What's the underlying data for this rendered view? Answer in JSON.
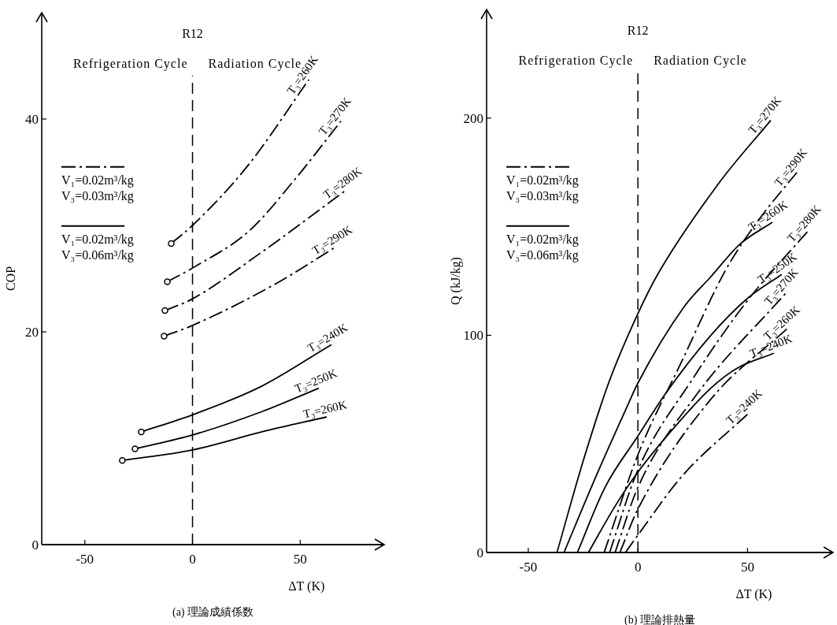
{
  "chart_data": [
    {
      "type": "line",
      "title": "R12",
      "subtitle": "(a) 理論成績係数",
      "xlabel": "ΔT (K)",
      "ylabel": "COP",
      "xlim": [
        -70,
        89
      ],
      "ylim": [
        0,
        50
      ],
      "xticks": [
        -50,
        0,
        50
      ],
      "yticks": [
        0,
        20,
        40
      ],
      "grid": false,
      "ref_lines": [
        {
          "axis": "x",
          "value": 0,
          "color": "#000000",
          "line_style": "dashed"
        }
      ],
      "annotations": [
        "Refrigeration Cycle",
        "Radiation Cycle",
        "V₁=0.02m³/kg\nV₃=0.03m³/kg",
        "V₁=0.02m³/kg\nV₃=0.06m³/kg"
      ],
      "series": [
        {
          "name": "T₃=260K",
          "color": "#000000",
          "line_style": "dashdot",
          "x": [
            -9.9,
            0,
            25.6,
            54
          ],
          "values": [
            28.3,
            30.0,
            35.6,
            43.7
          ]
        },
        {
          "name": "T₃=270K",
          "color": "#000000",
          "line_style": "dashdot",
          "x": [
            -11.7,
            0,
            26.4,
            47,
            68.9
          ],
          "values": [
            24.7,
            26.0,
            29.5,
            34.2,
            39.8
          ]
        },
        {
          "name": "T₃=280K",
          "color": "#000000",
          "line_style": "dashdot",
          "x": [
            -12.8,
            0,
            32.2,
            71.8
          ],
          "values": [
            22.0,
            23.1,
            27.5,
            33.4
          ]
        },
        {
          "name": "T₃=290K",
          "color": "#000000",
          "line_style": "dashdot",
          "x": [
            -13.2,
            0,
            38.5,
            66.7
          ],
          "values": [
            19.6,
            20.6,
            24.5,
            28.0
          ]
        },
        {
          "name": "T₃=240K",
          "color": "#000000",
          "line_style": "solid",
          "x": [
            -23.8,
            0,
            32.2,
            64.5
          ],
          "values": [
            10.6,
            12.2,
            14.9,
            18.8
          ]
        },
        {
          "name": "T₃=250K",
          "color": "#000000",
          "line_style": "solid",
          "x": [
            -26.7,
            0,
            32.2,
            58.6
          ],
          "values": [
            9.0,
            10.3,
            12.5,
            14.7
          ]
        },
        {
          "name": "T₃=260K",
          "color": "#000000",
          "line_style": "solid",
          "x": [
            -32.6,
            0,
            32.2,
            62.3
          ],
          "values": [
            7.9,
            8.9,
            10.6,
            12.0
          ]
        },
        {
          "type": "scatter",
          "color": "#000000",
          "marker": "circle",
          "x": [
            -9.9,
            -11.7,
            -12.8,
            -13.2,
            -23.8,
            -26.7,
            -32.6
          ],
          "values": [
            28.3,
            24.7,
            22.0,
            19.6,
            10.6,
            9.0,
            7.9
          ]
        }
      ]
    },
    {
      "type": "line",
      "title": "R12",
      "subtitle": "(b) 理論排熱量",
      "xlabel": "ΔT (K)",
      "ylabel": "Q (kJ/kg)",
      "xlim": [
        -69,
        89
      ],
      "ylim": [
        0,
        250
      ],
      "xticks": [
        -50,
        0,
        50
      ],
      "yticks": [
        0,
        100,
        200
      ],
      "grid": false,
      "ref_lines": [
        {
          "axis": "x",
          "value": 0,
          "color": "#000000",
          "line_style": "dashed"
        }
      ],
      "annotations": [
        "Refrigeration Cycle",
        "Radiation Cycle",
        "V₁=0.02m³/kg\nV₃=0.03m³/kg",
        "V₁=0.02m³/kg\nV₃=0.06m³/kg"
      ],
      "series": [
        {
          "name": "T₃=290K",
          "color": "#000000",
          "line_style": "dashdot",
          "x": [
            -15.4,
            0,
            20,
            40,
            55,
            72.5
          ],
          "values": [
            0,
            45,
            88,
            130,
            153,
            175
          ]
        },
        {
          "name": "T₃=270K",
          "color": "#000000",
          "line_style": "solid",
          "x": [
            -36.9,
            -25,
            -13,
            0,
            9,
            36.9,
            60.6
          ],
          "values": [
            0,
            42,
            79,
            110,
            128,
            170,
            199
          ]
        },
        {
          "name": "T₃=260K",
          "color": "#000000",
          "line_style": "solid",
          "x": [
            -33.7,
            -20,
            -5,
            0,
            21,
            33.3,
            46.6,
            61.3
          ],
          "values": [
            0,
            33,
            67,
            78,
            113,
            127,
            142,
            152
          ]
        },
        {
          "name": "T₃=280K",
          "color": "#000000",
          "line_style": "dashdot",
          "x": [
            -12.9,
            0,
            25,
            50,
            78.5
          ],
          "values": [
            0,
            38,
            80,
            116,
            149
          ]
        },
        {
          "name": "T₃=250K",
          "color": "#000000",
          "line_style": "solid",
          "x": [
            -27.6,
            -15,
            0,
            12.5,
            33.3,
            50,
            65.6
          ],
          "values": [
            0,
            30,
            53.6,
            73,
            100,
            117,
            128
          ]
        },
        {
          "name": "T₃=270K",
          "color": "#000000",
          "line_style": "dashdot",
          "x": [
            -10.4,
            0,
            27,
            68
          ],
          "values": [
            0,
            30,
            73,
            120
          ]
        },
        {
          "name": "T₃=260K",
          "color": "#000000",
          "line_style": "dashdot",
          "x": [
            -8.2,
            0,
            33.3,
            68
          ],
          "values": [
            0,
            20,
            70.6,
            103
          ]
        },
        {
          "name": "T₃=240K",
          "color": "#000000",
          "line_style": "solid",
          "x": [
            -22.6,
            -10,
            0,
            16.1,
            33.3,
            45.5,
            62
          ],
          "values": [
            0,
            22,
            37,
            57,
            75.7,
            85,
            91.7
          ]
        },
        {
          "name": "T₃=240K",
          "color": "#000000",
          "line_style": "dashdot",
          "x": [
            -5.7,
            0,
            20,
            50.9
          ],
          "values": [
            0,
            8,
            35,
            64.5
          ]
        }
      ]
    }
  ]
}
